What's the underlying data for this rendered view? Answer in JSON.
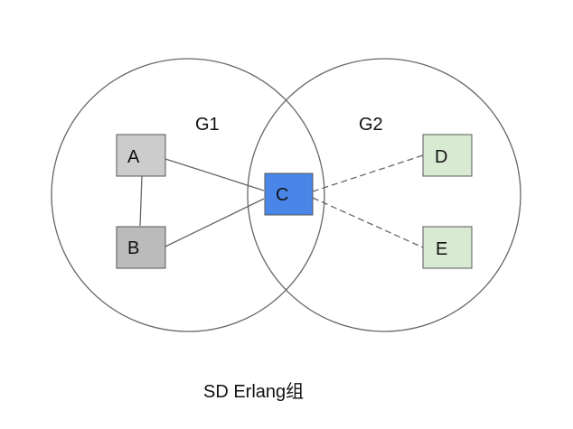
{
  "groups": [
    {
      "id": "g1",
      "label": "G1"
    },
    {
      "id": "g2",
      "label": "G2"
    }
  ],
  "nodes": [
    {
      "id": "a",
      "label": "A",
      "color": "#cccccc"
    },
    {
      "id": "b",
      "label": "B",
      "color": "#bbbbbb"
    },
    {
      "id": "c",
      "label": "C",
      "color": "#4a86e8"
    },
    {
      "id": "d",
      "label": "D",
      "color": "#d9ead3"
    },
    {
      "id": "e",
      "label": "E",
      "color": "#d9ead3"
    }
  ],
  "edges": [
    {
      "from": "A",
      "to": "B",
      "style": "solid"
    },
    {
      "from": "A",
      "to": "C",
      "style": "solid"
    },
    {
      "from": "B",
      "to": "C",
      "style": "solid"
    },
    {
      "from": "C",
      "to": "D",
      "style": "dashed"
    },
    {
      "from": "C",
      "to": "E",
      "style": "dashed"
    }
  ],
  "caption": "SD Erlang组"
}
